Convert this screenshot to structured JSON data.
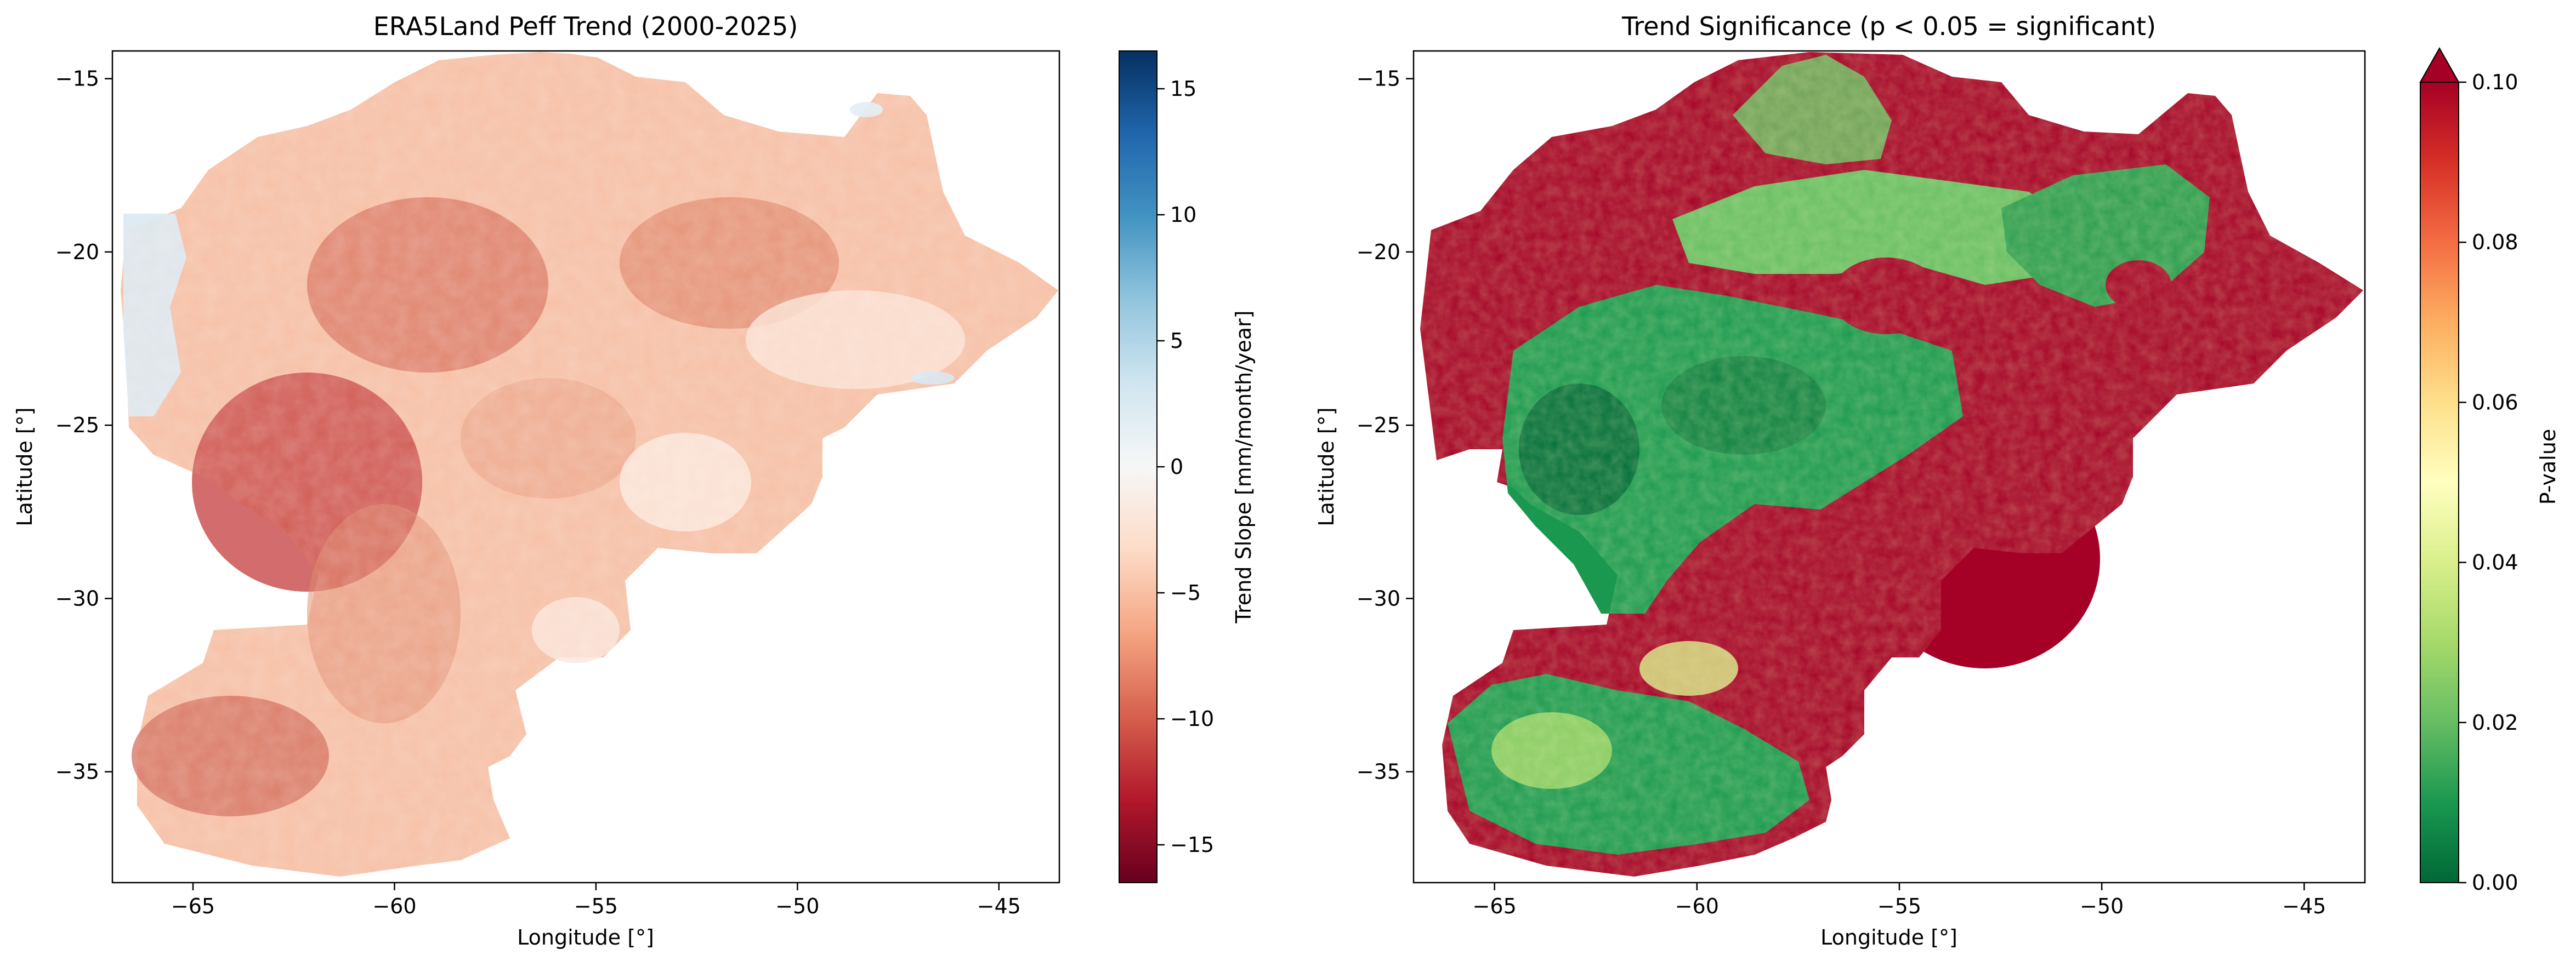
{
  "chart_data": [
    {
      "type": "heatmap",
      "title": "ERA5Land Peff Trend (2000-2025)",
      "xlabel": "Longitude [°]",
      "ylabel": "Latitude [°]",
      "xlim": [
        -67,
        -43.5
      ],
      "ylim": [
        -38.2,
        -14.2
      ],
      "x_ticks": [
        -65,
        -60,
        -55,
        -50,
        -45
      ],
      "x_tick_labels": [
        "−65",
        "−60",
        "−55",
        "−50",
        "−45"
      ],
      "y_ticks": [
        -15,
        -20,
        -25,
        -30,
        -35
      ],
      "y_tick_labels": [
        "−15",
        "−20",
        "−25",
        "−30",
        "−35"
      ],
      "colorbar": {
        "label": "Trend Slope [mm/month/year]",
        "colormap": "RdBu",
        "range": [
          -16.5,
          16.5
        ],
        "ticks": [
          15,
          10,
          5,
          0,
          -5,
          -10,
          -15
        ],
        "tick_labels": [
          "15",
          "10",
          "5",
          "0",
          "−5",
          "−10",
          "−15"
        ],
        "colors": [
          "#67001f",
          "#b2182b",
          "#d6604d",
          "#f4a582",
          "#fddbc7",
          "#f7f7f7",
          "#d1e5f0",
          "#92c5de",
          "#4393c3",
          "#2166ac",
          "#053061"
        ]
      },
      "description_of_field": "mostly negative slopes (red) across the basin, strongest near (-62,-27) and (-64,-34); slight positive (light blue) values along the western edge near (-66,-22)"
    },
    {
      "type": "heatmap",
      "title": "Trend Significance (p < 0.05 = significant)",
      "xlabel": "Longitude [°]",
      "ylabel": "Latitude [°]",
      "xlim": [
        -67,
        -43.5
      ],
      "ylim": [
        -38.2,
        -14.2
      ],
      "x_ticks": [
        -65,
        -60,
        -55,
        -50,
        -45
      ],
      "x_tick_labels": [
        "−65",
        "−60",
        "−55",
        "−50",
        "−45"
      ],
      "y_ticks": [
        -15,
        -20,
        -25,
        -30,
        -35
      ],
      "y_tick_labels": [
        "−15",
        "−20",
        "−25",
        "−30",
        "−35"
      ],
      "colorbar": {
        "label": "P-value",
        "colormap": "RdYlGn_r",
        "range": [
          0.0,
          0.1
        ],
        "extend": "max",
        "ticks": [
          0.1,
          0.08,
          0.06,
          0.04,
          0.02,
          0.0
        ],
        "tick_labels": [
          "0.10",
          "0.08",
          "0.06",
          "0.04",
          "0.02",
          "0.00"
        ],
        "colors": [
          "#006837",
          "#1a9850",
          "#66bd63",
          "#a6d96a",
          "#d9ef8b",
          "#ffffbf",
          "#fee08b",
          "#fdae61",
          "#f46d43",
          "#d73027",
          "#a50026"
        ]
      }
    }
  ]
}
